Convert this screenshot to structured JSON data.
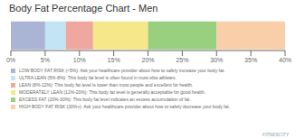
{
  "chart_data": {
    "type": "bar",
    "orientation": "horizontal",
    "stacked": true,
    "title": "Body Fat Percentage Chart - Men",
    "categories": [
      null
    ],
    "series": [
      {
        "name": "LOW BODY FAT RISK (<5%): Ask your healthcare provider about how to safely increase your body fat.",
        "color": "#aab4d4",
        "values": [
          5
        ]
      },
      {
        "name": "ULTRA LEAN (5%-8%): This body fat level is often found in most elite athletes.",
        "color": "#c2e4f4",
        "values": [
          3
        ]
      },
      {
        "name": "LEAN (8%-12%): This body fat level is lower than most people and excellent for health.",
        "color": "#efa8a0",
        "values": [
          4
        ]
      },
      {
        "name": "MODERATELY LEAN (12%-20%): This body fat level is generally acceptable for good health.",
        "color": "#f6e88a",
        "values": [
          8
        ]
      },
      {
        "name": "EXCESS FAT (20%-30%): This body fat level indicates an excess accumulation of fat.",
        "color": "#98d080",
        "values": [
          10
        ]
      },
      {
        "name": "HIGH BODY FAT RISK (30%+): Ask your healthcare provider about how to safely decrease your body fat.",
        "color": "#f8cfa8",
        "values": [
          10
        ]
      }
    ],
    "xlim": [
      0,
      40
    ],
    "xticks": [
      {
        "value": 0,
        "label": "0%"
      },
      {
        "value": 5,
        "label": "5%"
      },
      {
        "value": 10,
        "label": "10%"
      },
      {
        "value": 15,
        "label": "15%"
      },
      {
        "value": 20,
        "label": "20%"
      },
      {
        "value": 25,
        "label": "25%"
      },
      {
        "value": 30,
        "label": "30%"
      },
      {
        "value": 35,
        "label": "35%"
      },
      {
        "value": 40,
        "label": "40%"
      }
    ],
    "tick_labels": "x",
    "legend": "bottom",
    "annotations": [
      "FITNESCITY"
    ]
  }
}
